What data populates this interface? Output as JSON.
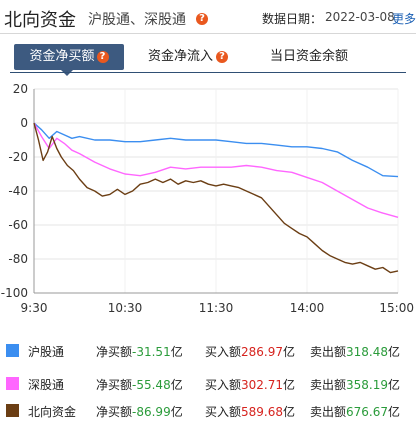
{
  "header": {
    "title": "北向资金",
    "subtitle": "沪股通、深股通",
    "date_label": "数据日期：",
    "date_value": "2022-03-08",
    "more": "更多"
  },
  "tabs": [
    {
      "label": "资金净买额",
      "active": true,
      "help": true
    },
    {
      "label": "资金净流入",
      "active": false,
      "help": true
    },
    {
      "label": "当日资金余额",
      "active": false,
      "help": false
    }
  ],
  "help_icon_glyph": "?",
  "colors": {
    "hgt": "#3b8ef0",
    "sgt": "#ff66ff",
    "north": "#6b3e14",
    "positive": "#d6231e",
    "negative": "#2a9b3a",
    "tab_active": "#3d5a80"
  },
  "chart_data": {
    "type": "line",
    "x_ticks": [
      "9:30",
      "10:30",
      "11:30",
      "14:00",
      "15:00"
    ],
    "y_ticks": [
      20,
      0,
      -20,
      -40,
      -60,
      -80,
      -100
    ],
    "ylim": [
      -100,
      20
    ],
    "grid": "horizontal",
    "x_unit": "minutes since 9:30 trading session",
    "series": [
      {
        "name": "沪股通",
        "color_key": "hgt",
        "x": [
          0,
          5,
          10,
          15,
          20,
          25,
          30,
          40,
          50,
          60,
          70,
          80,
          90,
          100,
          110,
          120,
          130,
          140,
          150,
          160,
          170,
          180,
          190,
          200,
          210,
          220,
          230,
          240
        ],
        "y": [
          0,
          -4,
          -9,
          -5,
          -7,
          -9,
          -8,
          -10,
          -10,
          -11,
          -11,
          -10,
          -9,
          -10,
          -10,
          -10,
          -11,
          -12,
          -12,
          -13,
          -14,
          -14,
          -15,
          -17,
          -22,
          -26,
          -31,
          -31.51
        ]
      },
      {
        "name": "深股通",
        "color_key": "sgt",
        "x": [
          0,
          5,
          10,
          15,
          20,
          25,
          30,
          40,
          50,
          60,
          70,
          80,
          90,
          100,
          110,
          120,
          130,
          140,
          150,
          160,
          170,
          180,
          190,
          200,
          210,
          220,
          230,
          240
        ],
        "y": [
          0,
          -8,
          -15,
          -9,
          -12,
          -16,
          -18,
          -23,
          -27,
          -30,
          -31,
          -29,
          -26,
          -27,
          -26,
          -26,
          -26,
          -25,
          -26,
          -28,
          -29,
          -32,
          -35,
          -40,
          -45,
          -50,
          -53,
          -55.48
        ]
      },
      {
        "name": "北向资金",
        "color_key": "north",
        "x": [
          0,
          3,
          6,
          9,
          12,
          15,
          18,
          22,
          26,
          30,
          35,
          40,
          45,
          50,
          55,
          60,
          65,
          70,
          75,
          80,
          85,
          90,
          95,
          100,
          105,
          110,
          115,
          120,
          125,
          130,
          135,
          140,
          145,
          150,
          155,
          160,
          165,
          170,
          175,
          180,
          185,
          190,
          195,
          200,
          205,
          210,
          215,
          220,
          225,
          230,
          235,
          240
        ],
        "y": [
          0,
          -10,
          -22,
          -17,
          -8,
          -15,
          -20,
          -25,
          -28,
          -33,
          -38,
          -40,
          -43,
          -42,
          -39,
          -42,
          -40,
          -36,
          -35,
          -33,
          -35,
          -33,
          -36,
          -34,
          -35,
          -34,
          -36,
          -37,
          -36,
          -37,
          -38,
          -40,
          -42,
          -44,
          -49,
          -54,
          -59,
          -62,
          -65,
          -67,
          -71,
          -75,
          -78,
          -80,
          -82,
          -83,
          -82,
          -84,
          -86,
          -85,
          -88,
          -86.99
        ]
      }
    ]
  },
  "legend": [
    {
      "name": "沪股通",
      "color_key": "hgt",
      "net_label": "净买额",
      "net": "-31.51",
      "buy_label": "买入额",
      "buy": "286.97",
      "sell_label": "卖出额",
      "sell": "318.48",
      "unit": "亿"
    },
    {
      "name": "深股通",
      "color_key": "sgt",
      "net_label": "净买额",
      "net": "-55.48",
      "buy_label": "买入额",
      "buy": "302.71",
      "sell_label": "卖出额",
      "sell": "358.19",
      "unit": "亿"
    },
    {
      "name": "北向资金",
      "color_key": "north",
      "net_label": "净买额",
      "net": "-86.99",
      "buy_label": "买入额",
      "buy": "589.68",
      "sell_label": "卖出额",
      "sell": "676.67",
      "unit": "亿"
    }
  ]
}
